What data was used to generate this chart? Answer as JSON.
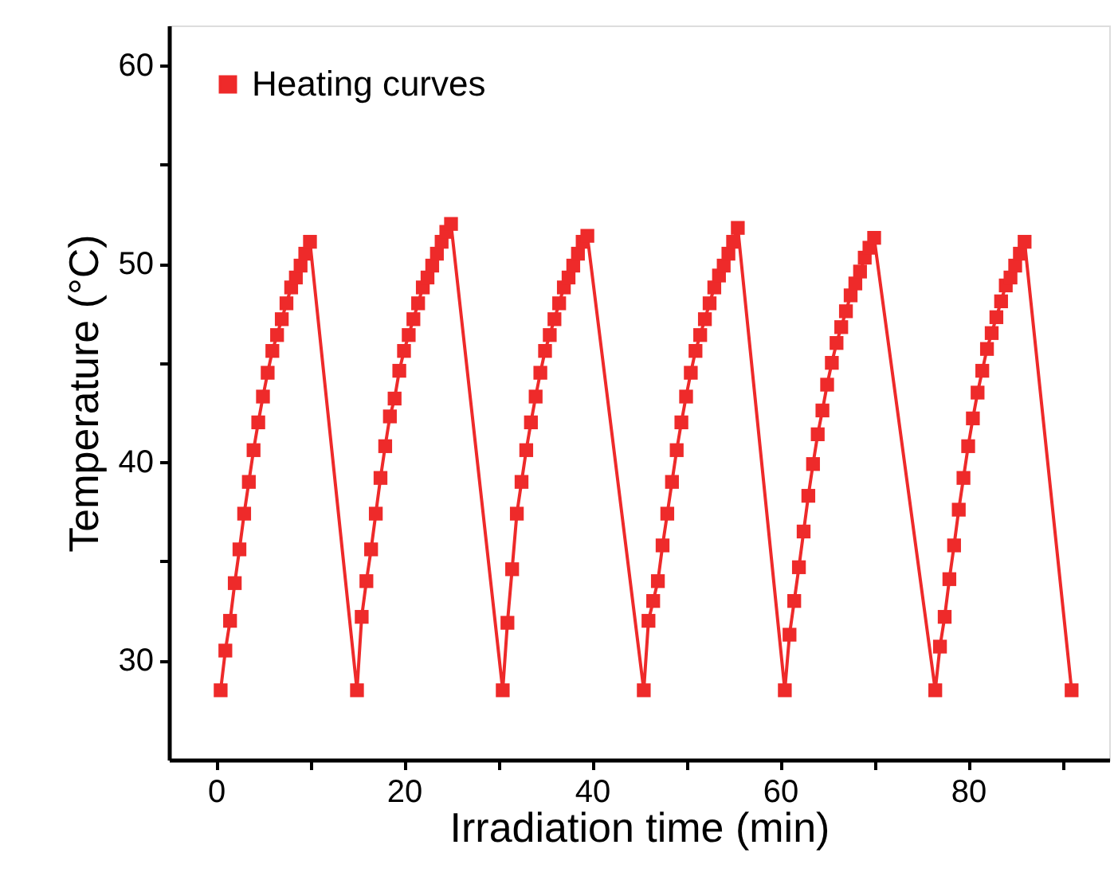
{
  "chart_data": {
    "type": "line",
    "xlabel": "Irradiation time (min)",
    "ylabel": "Temperature (°C)",
    "xlim": [
      -5,
      95
    ],
    "ylim": [
      25,
      62
    ],
    "xticks": [
      0,
      20,
      40,
      60,
      80,
      {
        "value": 10,
        "label": null
      },
      {
        "value": 30,
        "label": null
      },
      {
        "value": 50,
        "label": null
      },
      {
        "value": 70,
        "label": null
      },
      {
        "value": 90,
        "label": null
      }
    ],
    "yticks": [
      30,
      40,
      50,
      60,
      {
        "value": 35,
        "label": null
      },
      {
        "value": 45,
        "label": null
      },
      {
        "value": 55,
        "label": null
      }
    ],
    "grid": false,
    "legend": "top left",
    "marker": "square",
    "line_style": "solid",
    "series": [
      {
        "name": "Heating curves",
        "color": "#ee2a2a",
        "x": [
          0.5,
          1,
          1.5,
          2,
          2.5,
          3,
          3.5,
          4,
          4.5,
          5,
          5.5,
          6,
          6.5,
          7,
          7.5,
          8,
          8.5,
          9,
          9.5,
          10,
          15,
          15.5,
          16,
          16.5,
          17,
          17.5,
          18,
          18.5,
          19,
          19.5,
          20,
          20.5,
          21,
          21.5,
          22,
          22.5,
          23,
          23.5,
          24,
          24.5,
          25,
          30.5,
          31,
          31.5,
          32,
          32.5,
          33,
          33.5,
          34,
          34.5,
          35,
          35.5,
          36,
          36.5,
          37,
          37.5,
          38,
          38.5,
          39,
          39.5,
          45.5,
          46,
          46.5,
          47,
          47.5,
          48,
          48.5,
          49,
          49.5,
          50,
          50.5,
          51,
          51.5,
          52,
          52.5,
          53,
          53.5,
          54,
          54.5,
          55,
          55.5,
          60.5,
          61,
          61.5,
          62,
          62.5,
          63,
          63.5,
          64,
          64.5,
          65,
          65.5,
          66,
          66.5,
          67,
          67.5,
          68,
          68.5,
          69,
          69.5,
          70,
          76.5,
          77,
          77.5,
          78,
          78.5,
          79,
          79.5,
          80,
          80.5,
          81,
          81.5,
          82,
          82.5,
          83,
          83.5,
          84,
          84.5,
          85,
          85.5,
          86,
          91
        ],
        "values": [
          28.5,
          30.5,
          32.0,
          33.9,
          35.6,
          37.4,
          39.0,
          40.6,
          42.0,
          43.3,
          44.5,
          45.6,
          46.4,
          47.2,
          48.0,
          48.8,
          49.3,
          49.9,
          50.5,
          51.1,
          28.5,
          32.2,
          34.0,
          35.6,
          37.4,
          39.2,
          40.8,
          42.3,
          43.2,
          44.6,
          45.6,
          46.4,
          47.2,
          48.0,
          48.8,
          49.3,
          49.9,
          50.5,
          51.1,
          51.6,
          52.0,
          28.5,
          31.9,
          34.6,
          37.4,
          39.0,
          40.6,
          42.0,
          43.3,
          44.5,
          45.6,
          46.4,
          47.2,
          48.0,
          48.8,
          49.3,
          49.9,
          50.5,
          51.1,
          51.4,
          28.5,
          32.0,
          33.0,
          34.0,
          35.8,
          37.4,
          39.0,
          40.6,
          42.0,
          43.3,
          44.5,
          45.6,
          46.4,
          47.2,
          48.0,
          48.8,
          49.4,
          49.9,
          50.5,
          51.1,
          51.8,
          28.5,
          31.3,
          33.0,
          34.7,
          36.5,
          38.3,
          39.9,
          41.4,
          42.6,
          43.9,
          45.0,
          46.0,
          46.8,
          47.6,
          48.4,
          49.0,
          49.6,
          50.3,
          50.8,
          51.3,
          28.5,
          30.7,
          32.2,
          34.1,
          35.8,
          37.6,
          39.2,
          40.8,
          42.2,
          43.5,
          44.6,
          45.7,
          46.5,
          47.3,
          48.1,
          48.9,
          49.3,
          49.9,
          50.5,
          51.1,
          28.5
        ]
      }
    ]
  }
}
